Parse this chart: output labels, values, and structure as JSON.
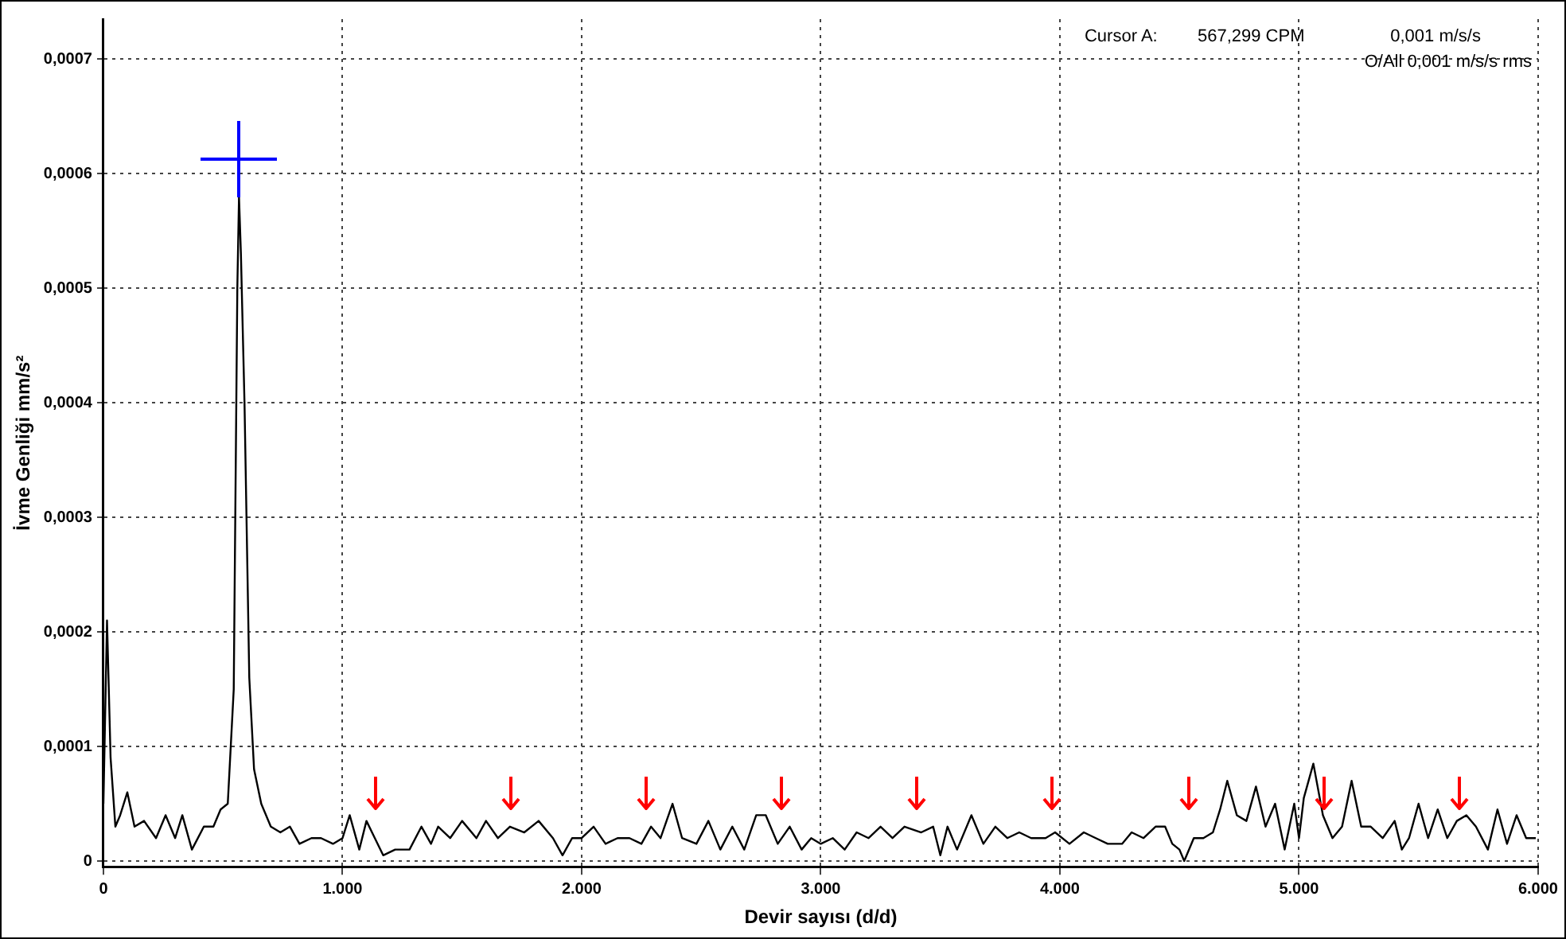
{
  "chart_data": {
    "type": "line",
    "xlabel": "Devir sayısı (d/d)",
    "ylabel": "İvme Genliği mm/s²",
    "annotations": [
      "Cursor A:",
      "567,299 CPM",
      "0,001 m/s/s",
      "O/All 0,001 m/s/s rms"
    ],
    "xlim": [
      0,
      6000
    ],
    "ylim": [
      -5e-06,
      0.000735
    ],
    "xticks": [
      {
        "value": 0,
        "label": "0"
      },
      {
        "value": 1000,
        "label": "1.000"
      },
      {
        "value": 2000,
        "label": "2.000"
      },
      {
        "value": 3000,
        "label": "3.000"
      },
      {
        "value": 4000,
        "label": "4.000"
      },
      {
        "value": 5000,
        "label": "5.000"
      },
      {
        "value": 6000,
        "label": "6.000"
      }
    ],
    "yticks": [
      {
        "value": 0,
        "label": "0"
      },
      {
        "value": 0.0001,
        "label": "0,0001"
      },
      {
        "value": 0.0002,
        "label": "0,0002"
      },
      {
        "value": 0.0003,
        "label": "0,0003"
      },
      {
        "value": 0.0004,
        "label": "0,0004"
      },
      {
        "value": 0.0005,
        "label": "0,0005"
      },
      {
        "value": 0.0006,
        "label": "0,0006"
      },
      {
        "value": 0.0007,
        "label": "0,0007"
      }
    ],
    "grid": true,
    "legend": false,
    "marker": "none",
    "line_style": "solid",
    "x": [
      0,
      15,
      30,
      50,
      70,
      100,
      130,
      170,
      220,
      260,
      300,
      330,
      370,
      420,
      460,
      490,
      520,
      545,
      560,
      567,
      575,
      590,
      610,
      630,
      660,
      700,
      740,
      780,
      820,
      870,
      910,
      960,
      1000,
      1030,
      1070,
      1100,
      1135,
      1170,
      1220,
      1280,
      1330,
      1370,
      1400,
      1450,
      1500,
      1560,
      1600,
      1650,
      1700,
      1760,
      1820,
      1880,
      1920,
      1960,
      2000,
      2050,
      2100,
      2150,
      2200,
      2250,
      2290,
      2330,
      2380,
      2420,
      2480,
      2530,
      2580,
      2630,
      2680,
      2730,
      2770,
      2820,
      2870,
      2920,
      2960,
      3000,
      3050,
      3100,
      3150,
      3200,
      3250,
      3300,
      3350,
      3420,
      3470,
      3500,
      3530,
      3570,
      3630,
      3680,
      3730,
      3780,
      3830,
      3880,
      3940,
      3980,
      4040,
      4100,
      4150,
      4200,
      4260,
      4300,
      4350,
      4400,
      4440,
      4470,
      4500,
      4520,
      4560,
      4600,
      4640,
      4670,
      4700,
      4740,
      4780,
      4820,
      4860,
      4900,
      4940,
      4980,
      5000,
      5020,
      5060,
      5100,
      5140,
      5180,
      5220,
      5260,
      5300,
      5350,
      5400,
      5430,
      5460,
      5500,
      5540,
      5580,
      5620,
      5660,
      5700,
      5740,
      5790,
      5830,
      5870,
      5910,
      5950,
      5990
    ],
    "series": [
      {
        "color": "#000000",
        "values": [
          5e-05,
          0.00021,
          9e-05,
          3e-05,
          4e-05,
          6e-05,
          3e-05,
          3.5e-05,
          2e-05,
          4e-05,
          2e-05,
          4e-05,
          1e-05,
          3e-05,
          3e-05,
          4.5e-05,
          5e-05,
          0.00015,
          0.0005,
          0.00058,
          0.00053,
          0.0004,
          0.00016,
          8e-05,
          5e-05,
          3e-05,
          2.5e-05,
          3e-05,
          1.5e-05,
          2e-05,
          2e-05,
          1.5e-05,
          2e-05,
          4e-05,
          1e-05,
          3.5e-05,
          2e-05,
          5e-06,
          1e-05,
          1e-05,
          3e-05,
          1.5e-05,
          3e-05,
          2e-05,
          3.5e-05,
          2e-05,
          3.5e-05,
          2e-05,
          3e-05,
          2.5e-05,
          3.5e-05,
          2e-05,
          5e-06,
          2e-05,
          2e-05,
          3e-05,
          1.5e-05,
          2e-05,
          2e-05,
          1.5e-05,
          3e-05,
          2e-05,
          5e-05,
          2e-05,
          1.5e-05,
          3.5e-05,
          1e-05,
          3e-05,
          1e-05,
          4e-05,
          4e-05,
          1.5e-05,
          3e-05,
          1e-05,
          2e-05,
          1.5e-05,
          2e-05,
          1e-05,
          2.5e-05,
          2e-05,
          3e-05,
          2e-05,
          3e-05,
          2.5e-05,
          3e-05,
          5e-06,
          3e-05,
          1e-05,
          4e-05,
          1.5e-05,
          3e-05,
          2e-05,
          2.5e-05,
          2e-05,
          2e-05,
          2.5e-05,
          1.5e-05,
          2.5e-05,
          2e-05,
          1.5e-05,
          1.5e-05,
          2.5e-05,
          2e-05,
          3e-05,
          3e-05,
          1.5e-05,
          1e-05,
          0,
          2e-05,
          2e-05,
          2.5e-05,
          4.5e-05,
          7e-05,
          4e-05,
          3.5e-05,
          6.5e-05,
          3e-05,
          5e-05,
          1e-05,
          5e-05,
          2e-05,
          5.5e-05,
          8.5e-05,
          4e-05,
          2e-05,
          3e-05,
          7e-05,
          3e-05,
          3e-05,
          2e-05,
          3.5e-05,
          1e-05,
          2e-05,
          5e-05,
          2e-05,
          4.5e-05,
          2e-05,
          3.5e-05,
          4e-05,
          3e-05,
          1e-05,
          4.5e-05,
          1.5e-05,
          4e-05,
          2e-05,
          2e-05
        ]
      }
    ]
  }
}
